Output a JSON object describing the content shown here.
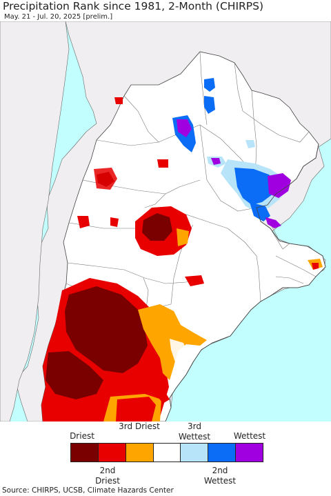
{
  "title": "Precipitation Rank since 1981, 2-Month (CHIRPS)",
  "subtitle": "May. 21 - Jul. 20, 2025 [prelim.]",
  "legend": {
    "top_labels": [
      "Driest",
      "3rd Driest",
      "3rd Wettest",
      "Wettest"
    ],
    "bottom_labels": [
      "2nd Driest",
      "2nd Wettest"
    ],
    "colors": [
      "#7a0000",
      "#e80000",
      "#ffa500",
      "#ffffff",
      "#b7e4f9",
      "#0b6cf5",
      "#a000e0"
    ]
  },
  "map_colors": {
    "ocean": "#c2fefe",
    "land_outside": "#f0eef0",
    "land": "#ffffff",
    "border": "#444444"
  },
  "source": "Source: CHIRPS, UCSB, Climate Hazards Center"
}
